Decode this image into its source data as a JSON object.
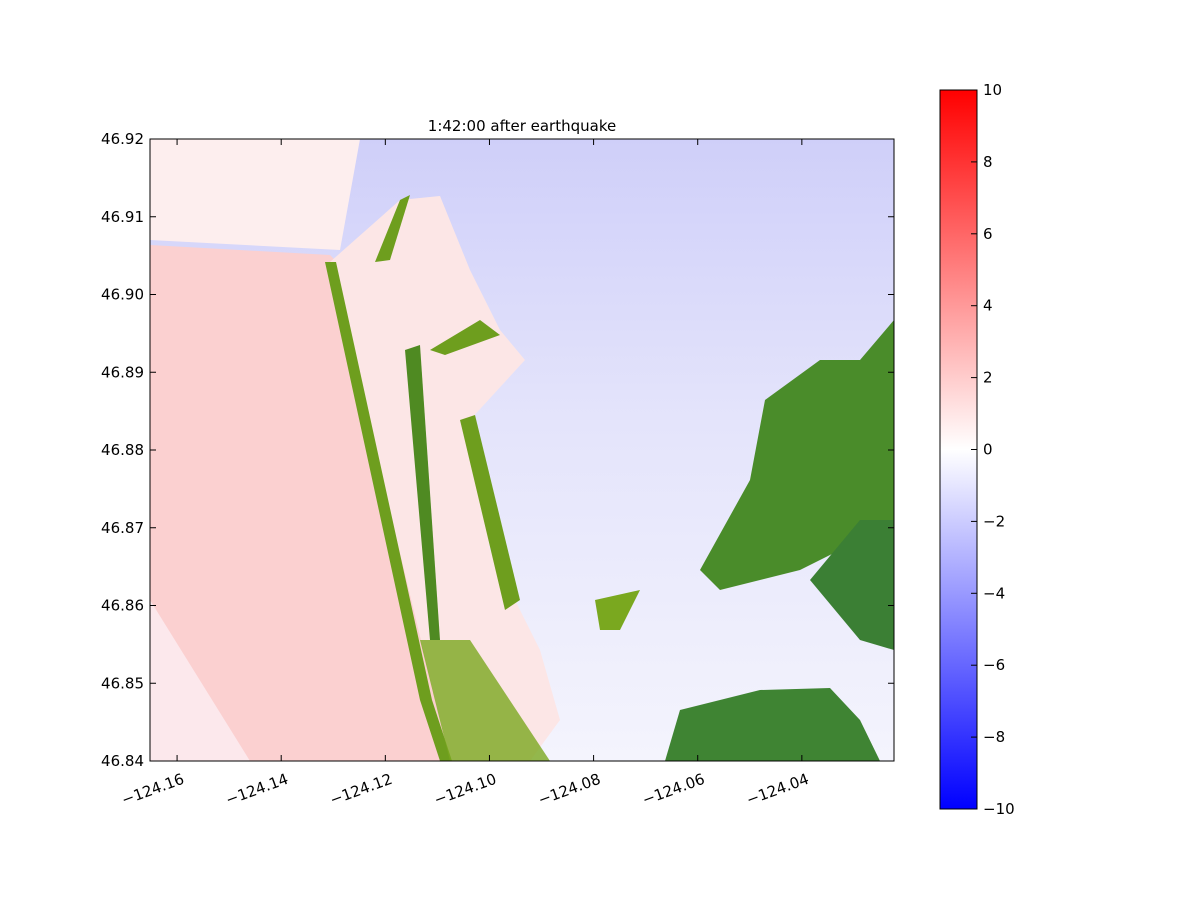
{
  "chart_data": {
    "type": "map",
    "title": "1:42:00 after earthquake",
    "xlim": [
      -124.1652,
      -124.0223
    ],
    "ylim": [
      46.84,
      46.92
    ],
    "xticks": [
      {
        "value": -124.16,
        "label": "−124.16"
      },
      {
        "value": -124.14,
        "label": "−124.14"
      },
      {
        "value": -124.12,
        "label": "−124.12"
      },
      {
        "value": -124.1,
        "label": "−124.10"
      },
      {
        "value": -124.08,
        "label": "−124.08"
      },
      {
        "value": -124.06,
        "label": "−124.06"
      },
      {
        "value": -124.04,
        "label": "−124.04"
      }
    ],
    "yticks": [
      46.84,
      46.85,
      46.86,
      46.87,
      46.88,
      46.89,
      {
        "value": 46.9,
        "label": "46.90"
      },
      46.91,
      46.92
    ],
    "colorbar": {
      "lim": [
        -10,
        10
      ],
      "colors": [
        "#0000ff",
        "#ffffff",
        "#ff0000"
      ],
      "ticks": [
        {
          "value": -10,
          "label": "−10"
        },
        {
          "value": -8,
          "label": "−8"
        },
        {
          "value": -6,
          "label": "−6"
        },
        {
          "value": -4,
          "label": "−4"
        },
        {
          "value": -2,
          "label": "−2"
        },
        0,
        2,
        4,
        6,
        8,
        10
      ]
    }
  }
}
